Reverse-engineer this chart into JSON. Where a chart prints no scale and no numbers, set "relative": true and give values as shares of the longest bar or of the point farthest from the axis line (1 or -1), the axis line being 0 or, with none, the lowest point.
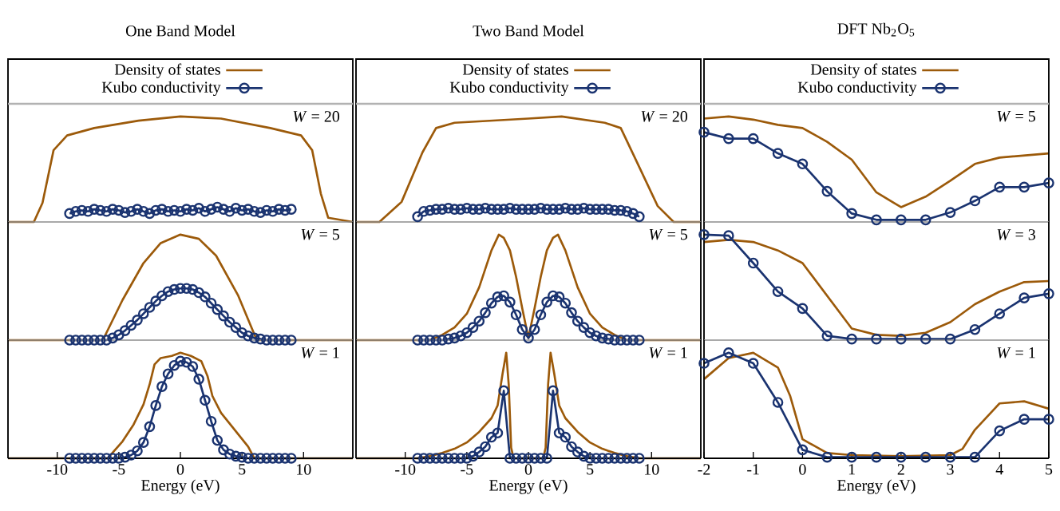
{
  "chart_data": [
    {
      "type": "line",
      "title": "One Band Model",
      "relative": true,
      "xlim": [
        -14,
        14
      ],
      "xticks": [
        -10,
        -5,
        0,
        5,
        10
      ],
      "tick_labels": false,
      "legend": "top",
      "annotations": [
        "*W* = 20"
      ],
      "series": [
        {
          "name": "Density of states",
          "color": "#9c5a0a",
          "marker": "none",
          "x": [
            -14,
            -11.9,
            -11.2,
            -10.3,
            -9.2,
            -7,
            -3.4,
            0,
            3.3,
            7.3,
            9.8,
            10.7,
            11.4,
            12,
            14
          ],
          "values": [
            0,
            0,
            0.18,
            0.68,
            0.82,
            0.89,
            0.96,
            1,
            0.98,
            0.89,
            0.82,
            0.68,
            0.27,
            0.04,
            0
          ]
        },
        {
          "name": "Kubo conductivity",
          "color": "#1a3370",
          "marker": "circle",
          "x": [
            -9,
            -8.5,
            -8,
            -7.5,
            -7,
            -6.5,
            -6,
            -5.5,
            -5,
            -4.5,
            -4,
            -3.5,
            -3,
            -2.5,
            -2,
            -1.5,
            -1,
            -0.5,
            0,
            0.5,
            1,
            1.5,
            2,
            2.5,
            3,
            3.5,
            4,
            4.5,
            5,
            5.5,
            6,
            6.5,
            7,
            7.5,
            8,
            8.5,
            9
          ],
          "values": [
            0.08,
            0.1,
            0.11,
            0.1,
            0.12,
            0.11,
            0.1,
            0.12,
            0.11,
            0.09,
            0.1,
            0.12,
            0.1,
            0.08,
            0.11,
            0.12,
            0.1,
            0.11,
            0.1,
            0.12,
            0.11,
            0.13,
            0.1,
            0.12,
            0.14,
            0.12,
            0.1,
            0.13,
            0.11,
            0.12,
            0.1,
            0.09,
            0.11,
            0.1,
            0.12,
            0.11,
            0.12
          ]
        }
      ]
    },
    {
      "type": "line",
      "title": "Two Band Model",
      "relative": true,
      "xlim": [
        -14,
        14
      ],
      "xticks": [
        -10,
        -5,
        0,
        5,
        10
      ],
      "tick_labels": false,
      "legend": "top",
      "annotations": [
        "*W* = 20"
      ],
      "series": [
        {
          "name": "Density of states",
          "color": "#9c5a0a",
          "marker": "none",
          "x": [
            -14,
            -12.1,
            -10.3,
            -8.6,
            -7.5,
            -6,
            0,
            2.7,
            6.2,
            7.5,
            8.8,
            10.5,
            11.8,
            14
          ],
          "values": [
            0,
            0,
            0.19,
            0.66,
            0.89,
            0.94,
            0.98,
            1,
            0.94,
            0.89,
            0.57,
            0.15,
            0,
            0
          ]
        },
        {
          "name": "Kubo conductivity",
          "color": "#1a3370",
          "marker": "circle",
          "x": [
            -9,
            -8.5,
            -8,
            -7.5,
            -7,
            -6.5,
            -6,
            -5.5,
            -5,
            -4.5,
            -4,
            -3.5,
            -3,
            -2.5,
            -2,
            -1.5,
            -1,
            -0.5,
            0,
            0.5,
            1,
            1.5,
            2,
            2.5,
            3,
            3.5,
            4,
            4.5,
            5,
            5.5,
            6,
            6.5,
            7,
            7.5,
            8,
            8.5,
            9
          ],
          "values": [
            0.05,
            0.1,
            0.11,
            0.12,
            0.12,
            0.13,
            0.12,
            0.12,
            0.13,
            0.12,
            0.12,
            0.13,
            0.12,
            0.12,
            0.12,
            0.13,
            0.12,
            0.12,
            0.12,
            0.12,
            0.13,
            0.12,
            0.12,
            0.12,
            0.13,
            0.12,
            0.12,
            0.13,
            0.12,
            0.12,
            0.12,
            0.12,
            0.11,
            0.11,
            0.1,
            0.08,
            0.05
          ]
        }
      ]
    },
    {
      "type": "line",
      "title": "DFT Nb$_{2}$O$_{5}$",
      "relative": true,
      "xlim": [
        -2,
        5
      ],
      "xticks": [
        -2,
        -1,
        0,
        1,
        2,
        3,
        4,
        5
      ],
      "tick_labels": false,
      "legend": "top",
      "annotations": [
        "*W* = 5"
      ],
      "series": [
        {
          "name": "Density of states",
          "color": "#9c5a0a",
          "marker": "none",
          "x": [
            -2,
            -1.5,
            -1,
            -0.5,
            0,
            0.5,
            1,
            1.5,
            2,
            2.5,
            3,
            3.5,
            4,
            4.5,
            5
          ],
          "values": [
            0.98,
            1,
            0.97,
            0.92,
            0.89,
            0.76,
            0.59,
            0.28,
            0.14,
            0.24,
            0.39,
            0.55,
            0.61,
            0.63,
            0.65
          ]
        },
        {
          "name": "Kubo conductivity",
          "color": "#1a3370",
          "marker": "circle",
          "x": [
            -2,
            -1.5,
            -1,
            -0.5,
            0,
            0.5,
            1,
            1.5,
            2,
            2.5,
            3,
            3.5,
            4,
            4.5,
            5
          ],
          "values": [
            0.85,
            0.79,
            0.79,
            0.65,
            0.55,
            0.29,
            0.08,
            0.02,
            0.02,
            0.02,
            0.09,
            0.2,
            0.33,
            0.33,
            0.37
          ]
        }
      ]
    },
    {
      "type": "line",
      "relative": true,
      "xlim": [
        -14,
        14
      ],
      "xticks": [
        -10,
        -5,
        0,
        5,
        10
      ],
      "tick_labels": false,
      "annotations": [
        "*W* = 5"
      ],
      "series": [
        {
          "color": "#9c5a0a",
          "marker": "none",
          "x": [
            -14,
            -6.3,
            -4.7,
            -3,
            -1.6,
            0,
            1.5,
            2.9,
            4.7,
            6.2,
            14
          ],
          "values": [
            0,
            0,
            0.38,
            0.73,
            0.92,
            1,
            0.96,
            0.8,
            0.42,
            0,
            0
          ]
        },
        {
          "color": "#1a3370",
          "marker": "circle",
          "x": [
            -9,
            -8.5,
            -8,
            -7.5,
            -7,
            -6.5,
            -6,
            -5.5,
            -5,
            -4.5,
            -4,
            -3.5,
            -3,
            -2.5,
            -2,
            -1.5,
            -1,
            -0.5,
            0,
            0.5,
            1,
            1.5,
            2,
            2.5,
            3,
            3.5,
            4,
            4.5,
            5,
            5.5,
            6,
            6.5,
            7,
            7.5,
            8,
            8.5,
            9
          ],
          "values": [
            0,
            0,
            0,
            0,
            0,
            0,
            0,
            0.02,
            0.05,
            0.09,
            0.14,
            0.19,
            0.25,
            0.31,
            0.37,
            0.42,
            0.46,
            0.48,
            0.49,
            0.49,
            0.48,
            0.45,
            0.41,
            0.35,
            0.29,
            0.23,
            0.17,
            0.12,
            0.07,
            0.04,
            0.02,
            0.01,
            0,
            0,
            0,
            0,
            0
          ]
        }
      ]
    },
    {
      "type": "line",
      "relative": true,
      "xlim": [
        -14,
        14
      ],
      "xticks": [
        -10,
        -5,
        0,
        5,
        10
      ],
      "tick_labels": false,
      "annotations": [
        "*W* = 5"
      ],
      "series": [
        {
          "color": "#9c5a0a",
          "marker": "none",
          "x": [
            -14,
            -8,
            -7,
            -6,
            -5,
            -4,
            -3,
            -2.4,
            -2,
            -1.5,
            -1,
            -0.5,
            0,
            0.5,
            1,
            1.5,
            2,
            2.4,
            3,
            4,
            5,
            6,
            7,
            8,
            14
          ],
          "values": [
            0,
            0,
            0.05,
            0.12,
            0.25,
            0.5,
            0.85,
            1,
            0.97,
            0.85,
            0.6,
            0.3,
            0.02,
            0.3,
            0.6,
            0.85,
            0.97,
            1,
            0.85,
            0.5,
            0.25,
            0.12,
            0.05,
            0,
            0
          ]
        },
        {
          "color": "#1a3370",
          "marker": "circle",
          "x": [
            -9,
            -8.5,
            -8,
            -7.5,
            -7,
            -6.5,
            -6,
            -5.5,
            -5,
            -4.5,
            -4,
            -3.5,
            -3,
            -2.5,
            -2,
            -1.5,
            -1,
            -0.5,
            0,
            0.5,
            1,
            1.5,
            2,
            2.5,
            3,
            3.5,
            4,
            4.5,
            5,
            5.5,
            6,
            6.5,
            7,
            7.5,
            8,
            8.5,
            9
          ],
          "values": [
            0,
            0,
            0,
            0,
            0,
            0.01,
            0.02,
            0.04,
            0.07,
            0.12,
            0.18,
            0.26,
            0.35,
            0.41,
            0.42,
            0.36,
            0.24,
            0.1,
            0.02,
            0.1,
            0.24,
            0.36,
            0.42,
            0.41,
            0.35,
            0.26,
            0.18,
            0.12,
            0.07,
            0.04,
            0.02,
            0.01,
            0,
            0,
            0,
            0,
            0
          ]
        }
      ]
    },
    {
      "type": "line",
      "relative": true,
      "xlim": [
        -2,
        5
      ],
      "xticks": [
        -2,
        -1,
        0,
        1,
        2,
        3,
        4,
        5
      ],
      "tick_labels": false,
      "annotations": [
        "*W* = 3"
      ],
      "series": [
        {
          "color": "#9c5a0a",
          "marker": "none",
          "x": [
            -2,
            -1.5,
            -1,
            -0.5,
            0,
            0.5,
            1,
            1.5,
            2,
            2.5,
            3,
            3.5,
            4,
            4.5,
            5
          ],
          "values": [
            0.93,
            0.95,
            0.93,
            0.85,
            0.73,
            0.42,
            0.11,
            0.05,
            0.04,
            0.07,
            0.17,
            0.34,
            0.46,
            0.55,
            0.56
          ]
        },
        {
          "color": "#1a3370",
          "marker": "circle",
          "x": [
            -2,
            -1.5,
            -1,
            -0.5,
            0,
            0.5,
            1,
            1.5,
            2,
            2.5,
            3,
            3.5,
            4,
            4.5,
            5
          ],
          "values": [
            1,
            0.99,
            0.73,
            0.46,
            0.3,
            0.04,
            0.01,
            0.01,
            0.01,
            0.01,
            0.01,
            0.1,
            0.25,
            0.4,
            0.44
          ]
        }
      ]
    },
    {
      "type": "line",
      "xlabel": "Energy (eV)",
      "relative": true,
      "xlim": [
        -14,
        14
      ],
      "xticks": [
        -10,
        -5,
        0,
        5,
        10
      ],
      "tick_labels": "x",
      "annotations": [
        "*W* = 1"
      ],
      "series": [
        {
          "color": "#9c5a0a",
          "marker": "none",
          "x": [
            -14,
            -5.9,
            -4.7,
            -3.8,
            -3,
            -2.5,
            -2.1,
            -1.6,
            -0.7,
            0,
            0.85,
            1.7,
            2.2,
            2.6,
            3.3,
            4.2,
            5.5,
            6,
            14
          ],
          "values": [
            0,
            0,
            0.16,
            0.32,
            0.51,
            0.7,
            0.89,
            0.95,
            0.97,
            1,
            0.97,
            0.92,
            0.78,
            0.59,
            0.43,
            0.3,
            0.11,
            0,
            0
          ]
        },
        {
          "color": "#1a3370",
          "marker": "circle",
          "x": [
            -9,
            -8.5,
            -8,
            -7.5,
            -7,
            -6.5,
            -6,
            -5.5,
            -5,
            -4.5,
            -4,
            -3.5,
            -3,
            -2.5,
            -2,
            -1.5,
            -1,
            -0.5,
            0,
            0.5,
            1,
            1.5,
            2,
            2.5,
            3,
            3.5,
            4,
            4.5,
            5,
            5.5,
            6,
            6.5,
            7,
            7.5,
            8,
            8.5,
            9
          ],
          "values": [
            0,
            0,
            0,
            0,
            0,
            0,
            0,
            0,
            0,
            0.01,
            0.03,
            0.07,
            0.15,
            0.3,
            0.5,
            0.68,
            0.8,
            0.88,
            0.92,
            0.91,
            0.87,
            0.75,
            0.55,
            0.35,
            0.17,
            0.08,
            0.04,
            0.02,
            0.01,
            0,
            0,
            0,
            0,
            0,
            0,
            0,
            0
          ]
        }
      ]
    },
    {
      "type": "line",
      "xlabel": "Energy (eV)",
      "relative": true,
      "xlim": [
        -14,
        14
      ],
      "xticks": [
        -10,
        -5,
        0,
        5,
        10
      ],
      "tick_labels": "x",
      "annotations": [
        "*W* = 1"
      ],
      "series": [
        {
          "color": "#9c5a0a",
          "marker": "none",
          "x": [
            -14,
            -9,
            -8,
            -7,
            -6,
            -5,
            -4,
            -3,
            -2.5,
            -2.1,
            -1.8,
            -1.6,
            -1.4,
            -1.2,
            1.2,
            1.4,
            1.6,
            1.8,
            2.1,
            2.5,
            3,
            4,
            5,
            6,
            7,
            8,
            9,
            14
          ],
          "values": [
            0,
            0,
            0.02,
            0.05,
            0.09,
            0.15,
            0.25,
            0.38,
            0.5,
            0.8,
            1,
            0.7,
            0.1,
            0,
            0,
            0.1,
            0.7,
            1,
            0.8,
            0.5,
            0.38,
            0.25,
            0.15,
            0.09,
            0.05,
            0.02,
            0,
            0
          ]
        },
        {
          "color": "#1a3370",
          "marker": "circle",
          "x": [
            -9,
            -8.5,
            -8,
            -7.5,
            -7,
            -6.5,
            -6,
            -5.5,
            -5,
            -4.5,
            -4,
            -3.5,
            -3,
            -2.5,
            -2,
            -1.5,
            -1,
            -0.5,
            0,
            0.5,
            1,
            1.5,
            2,
            2.5,
            3,
            3.5,
            4,
            4.5,
            5,
            5.5,
            6,
            6.5,
            7,
            7.5,
            8,
            8.5,
            9
          ],
          "values": [
            0,
            0,
            0,
            0,
            0,
            0,
            0,
            0,
            0,
            0.02,
            0.06,
            0.11,
            0.2,
            0.24,
            0.64,
            0,
            0,
            0,
            0,
            0,
            0,
            0,
            0.64,
            0.24,
            0.2,
            0.11,
            0.06,
            0.02,
            0,
            0,
            0,
            0,
            0,
            0,
            0,
            0,
            0
          ]
        }
      ]
    },
    {
      "type": "line",
      "xlabel": "Energy (eV)",
      "relative": true,
      "xlim": [
        -2,
        5
      ],
      "xticks": [
        -2,
        -1,
        0,
        1,
        2,
        3,
        4,
        5
      ],
      "tick_labels": "x",
      "annotations": [
        "*W* = 1"
      ],
      "series": [
        {
          "color": "#9c5a0a",
          "marker": "none",
          "x": [
            -2,
            -1.5,
            -1,
            -0.5,
            -0.25,
            0,
            0.5,
            1,
            2,
            3,
            3.25,
            3.5,
            4,
            4.5,
            5
          ],
          "values": [
            0.75,
            0.95,
            1,
            0.86,
            0.59,
            0.18,
            0.05,
            0.03,
            0.02,
            0.03,
            0.09,
            0.27,
            0.52,
            0.54,
            0.47
          ]
        },
        {
          "color": "#1a3370",
          "marker": "circle",
          "x": [
            -2,
            -1.5,
            -1,
            -0.5,
            0,
            0.5,
            1,
            1.5,
            2,
            2.5,
            3,
            3.5,
            4,
            4.5,
            5
          ],
          "values": [
            0.9,
            1,
            0.9,
            0.53,
            0.08,
            0.01,
            0.01,
            0.01,
            0.01,
            0.01,
            0.01,
            0.01,
            0.26,
            0.37,
            0.37
          ]
        }
      ]
    }
  ]
}
